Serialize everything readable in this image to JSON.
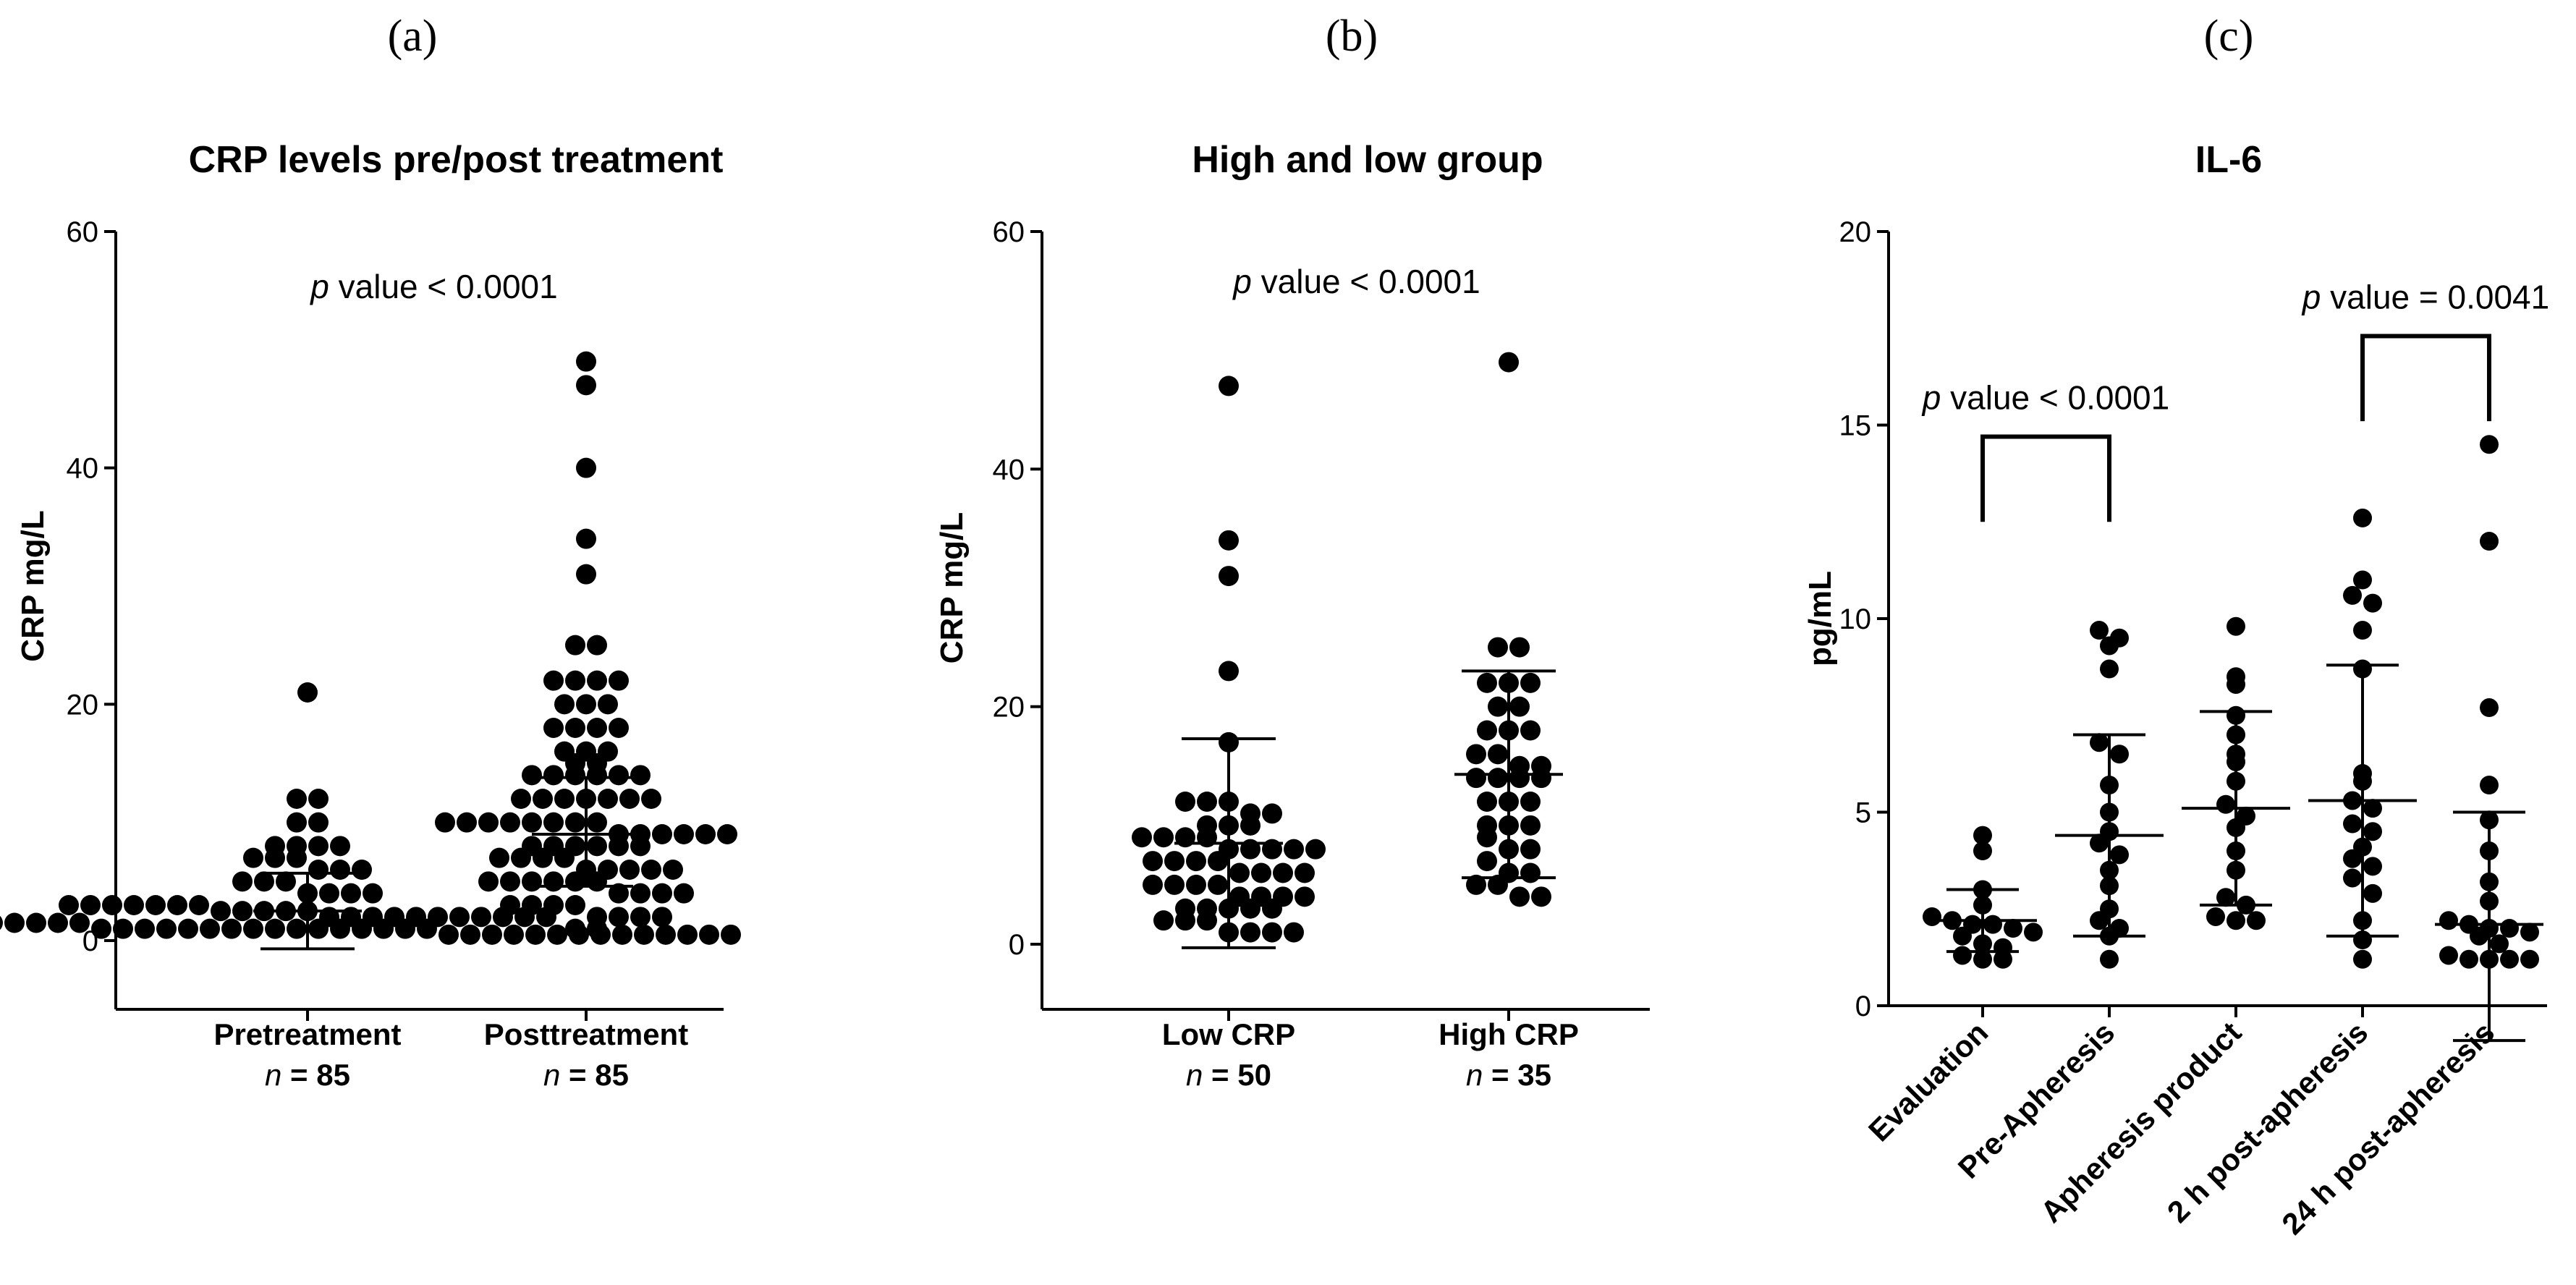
{
  "chart_data": [
    {
      "panel_label": "(a)",
      "type": "scatter",
      "title": "CRP levels pre/post treatment",
      "ylabel": "CRP mg/L",
      "ylim": [
        -5,
        60
      ],
      "yticks": [
        0,
        20,
        40,
        60
      ],
      "categories": [
        "Pretreatment",
        "Posttreatment"
      ],
      "n_labels": [
        "85",
        "85"
      ],
      "annotation": {
        "p": "p",
        "text": " value < 0.0001"
      },
      "series": [
        {
          "name": "Pretreatment",
          "mean": 2.5,
          "sd_low": -0.7,
          "sd_high": 5.7,
          "values": [
            21,
            12,
            12,
            10,
            10,
            8,
            8,
            8,
            8,
            7,
            7,
            7,
            6,
            6,
            6,
            5,
            5,
            5,
            4,
            4,
            4,
            4,
            3,
            3,
            3,
            3,
            3,
            3,
            3,
            2.5,
            2.5,
            2.5,
            2.5,
            2.5,
            2,
            2,
            2,
            2,
            2,
            2,
            2,
            2,
            2,
            2,
            2,
            1.5,
            1.5,
            1.5,
            1.5,
            1.5,
            1.5,
            1.5,
            1.5,
            1.5,
            1.5,
            1,
            1,
            1,
            1,
            1,
            1,
            1,
            1,
            1,
            1,
            1,
            1,
            1,
            1,
            1,
            1,
            0.5,
            0.5,
            0.5,
            0.5,
            0.5,
            0.5,
            0.5,
            0.5,
            0.5,
            0.5,
            0.5,
            0.5,
            0.5,
            0.5
          ]
        },
        {
          "name": "Posttreatment",
          "mean": 9,
          "sd_low": 4.6,
          "sd_high": 13.8,
          "values": [
            49,
            47,
            40,
            34,
            31,
            25,
            25,
            22,
            22,
            22,
            22,
            20,
            20,
            20,
            18,
            18,
            18,
            18,
            16,
            16,
            16,
            15,
            15,
            14,
            14,
            14,
            14,
            14,
            14,
            12,
            12,
            12,
            12,
            12,
            12,
            12,
            10,
            10,
            10,
            10,
            10,
            10,
            10,
            10,
            9,
            9,
            9,
            9,
            9,
            9,
            8,
            8,
            8,
            8,
            8,
            8,
            7,
            7,
            7,
            7,
            6,
            6,
            6,
            6,
            6,
            5,
            5,
            5,
            5,
            5,
            5,
            4,
            4,
            4,
            4,
            3,
            3,
            3,
            3,
            2,
            2,
            2,
            2,
            1,
            1
          ]
        }
      ]
    },
    {
      "panel_label": "(b)",
      "type": "scatter",
      "title": "High and low group",
      "ylabel": "CRP mg/L",
      "ylim": [
        -5,
        60
      ],
      "yticks": [
        0,
        20,
        40,
        60
      ],
      "categories": [
        "Low CRP",
        "High CRP"
      ],
      "n_labels": [
        "50",
        "35"
      ],
      "annotation": {
        "p": "p",
        "text": " value < 0.0001"
      },
      "series": [
        {
          "name": "Low CRP",
          "mean": 8.5,
          "sd_low": -0.3,
          "sd_high": 17.3,
          "values": [
            47,
            34,
            31,
            23,
            17,
            12,
            12,
            12,
            11,
            11,
            10,
            10,
            10,
            9,
            9,
            9,
            9,
            8,
            8,
            8,
            8,
            8,
            7,
            7,
            7,
            7,
            6,
            6,
            6,
            6,
            5,
            5,
            5,
            5,
            4,
            4,
            4,
            4,
            3,
            3,
            3,
            3,
            3,
            2,
            2,
            2,
            1,
            1,
            1,
            1
          ]
        },
        {
          "name": "High CRP",
          "mean": 14.3,
          "sd_low": 5.6,
          "sd_high": 23,
          "values": [
            49,
            25,
            25,
            22,
            22,
            22,
            20,
            20,
            18,
            18,
            18,
            16,
            16,
            15,
            15,
            14,
            14,
            14,
            14,
            12,
            12,
            12,
            10,
            10,
            10,
            9,
            8,
            8,
            7,
            6,
            6,
            5,
            5,
            4,
            4
          ]
        }
      ]
    },
    {
      "panel_label": "(c)",
      "type": "scatter",
      "title": "IL-6",
      "ylabel": "pg/mL",
      "ylim": [
        0,
        20
      ],
      "yticks": [
        0,
        5,
        10,
        15,
        20
      ],
      "categories": [
        "Evaluation",
        "Pre-Apheresis",
        "Apheresis product",
        "2 h post-apheresis",
        "24 h post-apheresis"
      ],
      "annotations": [
        {
          "p": "p",
          "text": " value < 0.0001",
          "from": 0,
          "to": 1,
          "y_top": 14.7,
          "y_legs": 12.5
        },
        {
          "p": "p",
          "text": " value = 0.0041",
          "from": 3,
          "to": 4,
          "y_top": 17.3,
          "y_legs": 15.1
        }
      ],
      "series": [
        {
          "name": "Evaluation",
          "mean": 2.2,
          "sd_low": 1.4,
          "sd_high": 3.0,
          "values": [
            4.4,
            4.0,
            3.0,
            2.6,
            2.3,
            2.2,
            2.1,
            2.1,
            2.0,
            1.9,
            1.8,
            1.6,
            1.5,
            1.3,
            1.2,
            1.2
          ]
        },
        {
          "name": "Pre-Apheresis",
          "mean": 4.4,
          "sd_low": 1.8,
          "sd_high": 7.0,
          "values": [
            9.7,
            9.5,
            9.3,
            8.7,
            6.8,
            6.5,
            5.7,
            5.0,
            4.5,
            4.2,
            3.9,
            3.5,
            3.1,
            2.5,
            2.2,
            2.0,
            1.8,
            1.2
          ]
        },
        {
          "name": "Apheresis product",
          "mean": 5.1,
          "sd_low": 2.6,
          "sd_high": 7.6,
          "values": [
            9.8,
            8.5,
            8.3,
            7.5,
            7.0,
            6.5,
            6.3,
            5.8,
            5.2,
            4.9,
            4.6,
            4.0,
            3.5,
            2.8,
            2.6,
            2.3,
            2.2,
            2.2
          ]
        },
        {
          "name": "2 h post-apheresis",
          "mean": 5.3,
          "sd_low": 1.8,
          "sd_high": 8.8,
          "values": [
            12.6,
            11.0,
            10.6,
            10.4,
            9.7,
            8.7,
            6.0,
            5.8,
            5.3,
            5.1,
            4.7,
            4.5,
            4.1,
            3.8,
            3.6,
            3.3,
            2.9,
            2.2,
            1.7,
            1.2
          ]
        },
        {
          "name": "24 h post-apheresis",
          "mean": 2.1,
          "sd_low": -0.9,
          "sd_high": 5.0,
          "values": [
            14.5,
            12.0,
            7.7,
            5.7,
            4.8,
            4.0,
            3.2,
            2.7,
            2.2,
            2.1,
            2.0,
            2.0,
            1.9,
            1.8,
            1.6,
            1.3,
            1.2,
            1.2,
            1.2,
            1.2
          ]
        }
      ]
    }
  ],
  "n_prefix": "n",
  "n_eq": " = "
}
